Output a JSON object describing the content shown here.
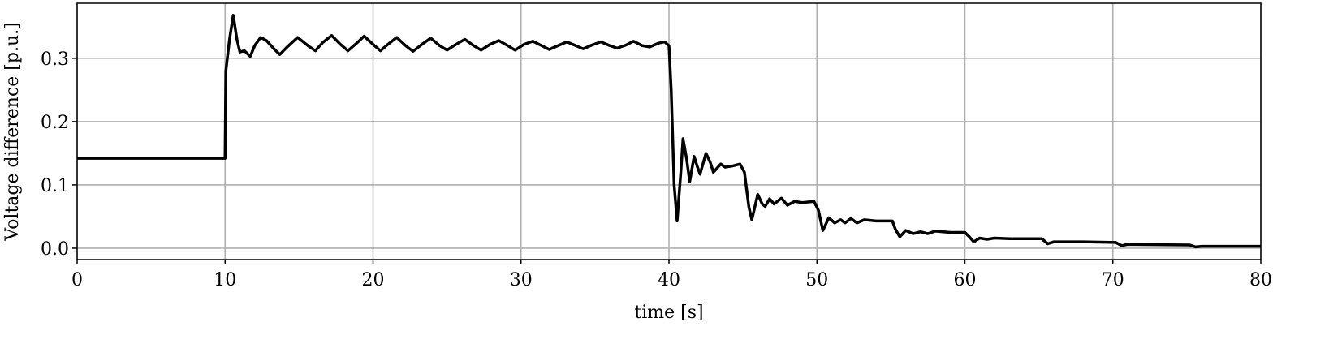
{
  "chart_data": {
    "type": "line",
    "xlabel": "time [s]",
    "ylabel": "Voltage difference [p.u.]",
    "xlim": [
      0,
      80
    ],
    "ylim": [
      -0.018,
      0.387
    ],
    "xticks": [
      0,
      10,
      20,
      30,
      40,
      50,
      60,
      70,
      80
    ],
    "yticks": [
      {
        "value": 0,
        "label": "0.0"
      },
      0.1,
      0.2,
      0.3
    ],
    "grid": true,
    "series": [
      {
        "color": "#000000",
        "x": [
          0,
          10,
          10.05,
          10.3,
          10.55,
          10.8,
          11.0,
          11.3,
          11.7,
          12.0,
          12.4,
          12.8,
          13.3,
          13.7,
          14.2,
          14.9,
          15.6,
          16.1,
          16.6,
          17.2,
          17.8,
          18.3,
          18.8,
          19.4,
          20.0,
          20.5,
          21.0,
          21.6,
          22.2,
          22.7,
          23.3,
          23.9,
          24.5,
          25.0,
          25.6,
          26.2,
          26.8,
          27.3,
          27.9,
          28.5,
          29.1,
          29.6,
          30.2,
          30.8,
          31.4,
          31.9,
          32.5,
          33.1,
          33.7,
          34.2,
          34.8,
          35.4,
          36.0,
          36.5,
          37.1,
          37.6,
          38.2,
          38.7,
          39.3,
          39.7,
          40.0,
          40.15,
          40.35,
          40.55,
          40.8,
          40.95,
          41.2,
          41.4,
          41.7,
          41.9,
          42.1,
          42.5,
          42.8,
          43.0,
          43.5,
          43.8,
          44.3,
          44.8,
          45.1,
          45.4,
          45.6,
          46.0,
          46.3,
          46.5,
          46.8,
          47.1,
          47.6,
          48.0,
          48.5,
          49.0,
          49.8,
          50.1,
          50.4,
          50.8,
          51.2,
          51.6,
          51.9,
          52.3,
          52.7,
          53.2,
          54.0,
          55.1,
          55.3,
          55.6,
          56.0,
          56.5,
          57.0,
          57.5,
          58.0,
          59.0,
          60.0,
          60.3,
          60.6,
          61.0,
          61.5,
          62.0,
          63.0,
          65.2,
          65.6,
          66.0,
          68.0,
          70.2,
          70.6,
          71.0,
          75.2,
          75.6,
          76.0,
          80
        ],
        "values": [
          0.142,
          0.142,
          0.28,
          0.33,
          0.368,
          0.33,
          0.31,
          0.312,
          0.303,
          0.32,
          0.333,
          0.328,
          0.315,
          0.306,
          0.318,
          0.333,
          0.32,
          0.312,
          0.325,
          0.336,
          0.322,
          0.312,
          0.322,
          0.335,
          0.322,
          0.312,
          0.322,
          0.333,
          0.32,
          0.311,
          0.322,
          0.332,
          0.32,
          0.313,
          0.322,
          0.33,
          0.32,
          0.313,
          0.322,
          0.328,
          0.32,
          0.313,
          0.322,
          0.327,
          0.32,
          0.314,
          0.32,
          0.326,
          0.32,
          0.315,
          0.321,
          0.326,
          0.32,
          0.316,
          0.321,
          0.327,
          0.32,
          0.318,
          0.324,
          0.326,
          0.32,
          0.25,
          0.1,
          0.043,
          0.12,
          0.173,
          0.14,
          0.105,
          0.145,
          0.13,
          0.117,
          0.15,
          0.135,
          0.12,
          0.133,
          0.128,
          0.13,
          0.133,
          0.12,
          0.065,
          0.045,
          0.085,
          0.07,
          0.066,
          0.078,
          0.07,
          0.079,
          0.068,
          0.074,
          0.072,
          0.074,
          0.06,
          0.028,
          0.048,
          0.04,
          0.045,
          0.04,
          0.047,
          0.04,
          0.045,
          0.043,
          0.043,
          0.03,
          0.018,
          0.028,
          0.023,
          0.026,
          0.023,
          0.027,
          0.025,
          0.025,
          0.018,
          0.01,
          0.016,
          0.014,
          0.016,
          0.015,
          0.015,
          0.007,
          0.01,
          0.01,
          0.009,
          0.004,
          0.006,
          0.005,
          0.002,
          0.003,
          0.003
        ]
      }
    ]
  }
}
